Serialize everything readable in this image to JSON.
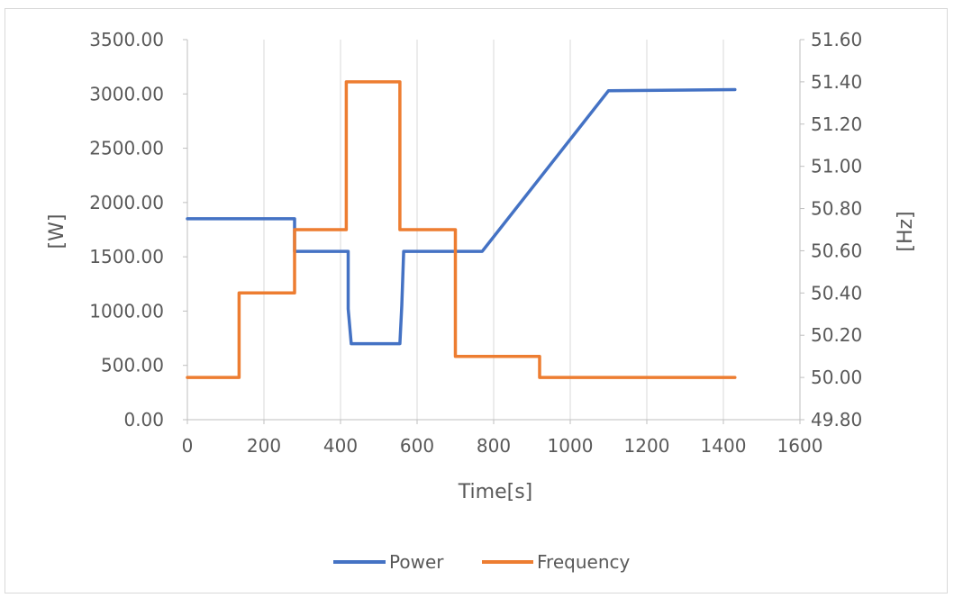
{
  "chart_data": {
    "type": "line",
    "title": "",
    "xlabel": "Time[s]",
    "ylabel_left": "[W]",
    "ylabel_right": "[Hz]",
    "xlim": [
      0,
      1600
    ],
    "ylim_left": [
      0,
      3500
    ],
    "ylim_right": [
      49.8,
      51.6
    ],
    "x_ticks": [
      "0",
      "200",
      "400",
      "600",
      "800",
      "1000",
      "1200",
      "1400",
      "1600"
    ],
    "y_left_ticks": [
      "0.00",
      "500.00",
      "1000.00",
      "1500.00",
      "2000.00",
      "2500.00",
      "3000.00",
      "3500.00"
    ],
    "y_right_ticks": [
      "49.80",
      "50.00",
      "50.20",
      "50.40",
      "50.60",
      "50.80",
      "51.00",
      "51.20",
      "51.40",
      "51.60"
    ],
    "x_tick_values": [
      0,
      200,
      400,
      600,
      800,
      1000,
      1200,
      1400,
      1600
    ],
    "y_left_tick_values": [
      0,
      500,
      1000,
      1500,
      2000,
      2500,
      3000,
      3500
    ],
    "y_right_tick_values": [
      49.8,
      50.0,
      50.2,
      50.4,
      50.6,
      50.8,
      51.0,
      51.2,
      51.4,
      51.6
    ],
    "grid": "vertical",
    "legend_position": "bottom",
    "series": [
      {
        "name": "Power",
        "axis": "left",
        "color": "#4472c4",
        "x": [
          0,
          280,
          280,
          420,
          420,
          428,
          555,
          560,
          565,
          770,
          1100,
          1430
        ],
        "y": [
          1850,
          1850,
          1550,
          1550,
          1020,
          700,
          700,
          1050,
          1550,
          1550,
          3030,
          3040
        ]
      },
      {
        "name": "Frequency",
        "axis": "right",
        "color": "#ed7d31",
        "x": [
          0,
          135,
          135,
          280,
          280,
          415,
          415,
          555,
          555,
          700,
          700,
          920,
          920,
          1430
        ],
        "y": [
          50.0,
          50.0,
          50.4,
          50.4,
          50.7,
          50.7,
          51.4,
          51.4,
          50.7,
          50.7,
          50.1,
          50.1,
          50.0,
          50.0
        ]
      }
    ]
  }
}
